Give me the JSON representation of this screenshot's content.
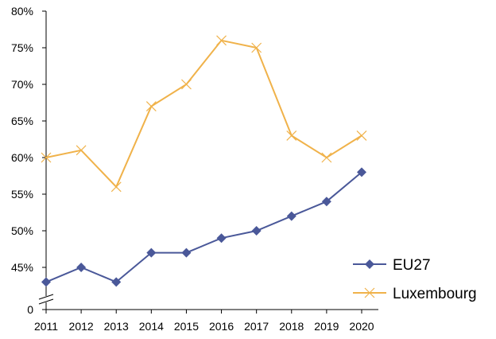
{
  "chart_data": {
    "type": "line",
    "x": [
      "2011",
      "2012",
      "2013",
      "2014",
      "2015",
      "2016",
      "2017",
      "2018",
      "2019",
      "2020"
    ],
    "y_ticks": [
      "80%",
      "75%",
      "70%",
      "65%",
      "60%",
      "55%",
      "50%",
      "45%",
      "0"
    ],
    "y_tick_values": [
      80,
      75,
      70,
      65,
      60,
      55,
      50,
      45,
      0
    ],
    "axis_break": true,
    "ylim": [
      42,
      80
    ],
    "grid": false,
    "legend_position": "bottom-right",
    "series": [
      {
        "name": "EU27",
        "color": "#4A5899",
        "marker": "diamond",
        "values": [
          43,
          45,
          43,
          47,
          47,
          49,
          50,
          52,
          54,
          58
        ]
      },
      {
        "name": "Luxembourg",
        "color": "#F0B24A",
        "marker": "x",
        "values": [
          60,
          61,
          56,
          67,
          70,
          76,
          75,
          63,
          60,
          63
        ]
      }
    ]
  }
}
